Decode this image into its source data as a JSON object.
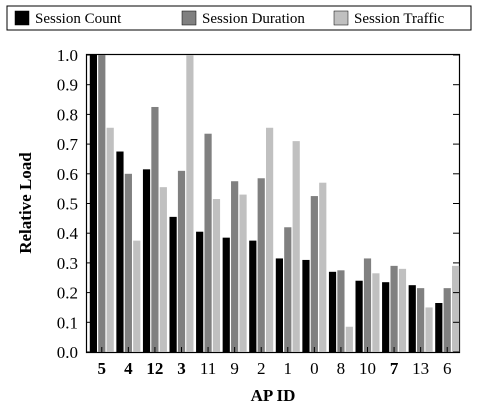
{
  "chart_data": {
    "type": "bar",
    "title": "",
    "xlabel": "AP ID",
    "ylabel": "Relative Load",
    "ylim": [
      0.0,
      1.0
    ],
    "yticks": [
      "0.0",
      "0.1",
      "0.2",
      "0.3",
      "0.4",
      "0.5",
      "0.6",
      "0.7",
      "0.8",
      "0.9",
      "1.0"
    ],
    "categories": [
      "5",
      "4",
      "12",
      "3",
      "11",
      "9",
      "2",
      "1",
      "0",
      "8",
      "10",
      "7",
      "13",
      "6"
    ],
    "bold_categories": [
      "5",
      "4",
      "12",
      "3",
      "7"
    ],
    "legend_position": "top",
    "grid": false,
    "series": [
      {
        "name": "Session Count",
        "color": "#000000",
        "values": [
          1.0,
          0.675,
          0.615,
          0.455,
          0.405,
          0.385,
          0.375,
          0.315,
          0.31,
          0.27,
          0.24,
          0.235,
          0.225,
          0.165
        ]
      },
      {
        "name": "Session Duration",
        "color": "#808080",
        "values": [
          1.0,
          0.6,
          0.825,
          0.61,
          0.735,
          0.575,
          0.585,
          0.42,
          0.525,
          0.275,
          0.315,
          0.29,
          0.215,
          0.215
        ]
      },
      {
        "name": "Session Traffic",
        "color": "#c0c0c0",
        "values": [
          0.755,
          0.375,
          0.555,
          1.0,
          0.515,
          0.53,
          0.755,
          0.71,
          0.57,
          0.085,
          0.265,
          0.28,
          0.15,
          0.29
        ]
      }
    ]
  }
}
